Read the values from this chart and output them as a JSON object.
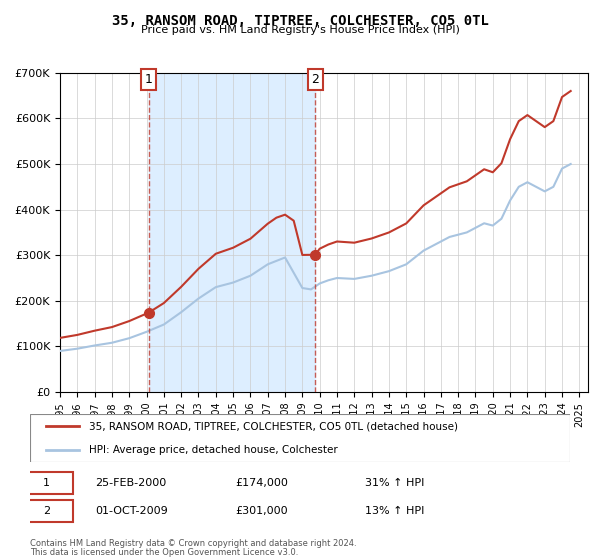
{
  "title": "35, RANSOM ROAD, TIPTREE, COLCHESTER, CO5 0TL",
  "subtitle": "Price paid vs. HM Land Registry's House Price Index (HPI)",
  "legend_line1": "35, RANSOM ROAD, TIPTREE, COLCHESTER, CO5 0TL (detached house)",
  "legend_line2": "HPI: Average price, detached house, Colchester",
  "footer1": "Contains HM Land Registry data © Crown copyright and database right 2024.",
  "footer2": "This data is licensed under the Open Government Licence v3.0.",
  "annotation1_label": "1",
  "annotation1_date": "25-FEB-2000",
  "annotation1_price": "£174,000",
  "annotation1_hpi": "31% ↑ HPI",
  "annotation2_label": "2",
  "annotation2_date": "01-OCT-2009",
  "annotation2_price": "£301,000",
  "annotation2_hpi": "13% ↑ HPI",
  "sale1_x": 2000.12,
  "sale1_y": 174000,
  "sale2_x": 2009.75,
  "sale2_y": 301000,
  "vline1_x": 2000.12,
  "vline2_x": 2009.75,
  "ylim": [
    0,
    700000
  ],
  "xlim": [
    1995,
    2025.5
  ],
  "hpi_color": "#a8c4e0",
  "price_color": "#c0392b",
  "shade_color": "#ddeeff",
  "grid_color": "#cccccc",
  "background_color": "#ffffff"
}
